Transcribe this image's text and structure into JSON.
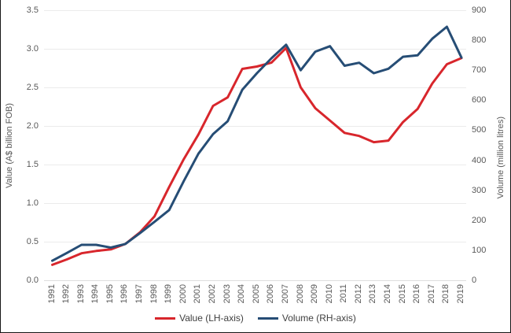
{
  "chart_data": {
    "type": "line",
    "title": "",
    "x": [
      1991,
      1992,
      1993,
      1994,
      1995,
      1996,
      1997,
      1998,
      1999,
      2000,
      2001,
      2002,
      2003,
      2004,
      2005,
      2006,
      2007,
      2008,
      2009,
      2010,
      2011,
      2012,
      2013,
      2014,
      2015,
      2016,
      2017,
      2018,
      2019
    ],
    "series": [
      {
        "name": "Value (LH-axis)",
        "axis": "left",
        "color": "#d8262c",
        "values": [
          0.2,
          0.27,
          0.35,
          0.38,
          0.4,
          0.47,
          0.62,
          0.83,
          1.21,
          1.57,
          1.89,
          2.26,
          2.37,
          2.74,
          2.77,
          2.82,
          3.01,
          2.5,
          2.23,
          2.07,
          1.91,
          1.87,
          1.79,
          1.81,
          2.05,
          2.22,
          2.55,
          2.8,
          2.88
        ]
      },
      {
        "name": "Volume (RH-axis)",
        "axis": "right",
        "color": "#264d75",
        "values": [
          65,
          91,
          118,
          118,
          109,
          121,
          157,
          195,
          234,
          331,
          422,
          487,
          530,
          635,
          690,
          740,
          785,
          700,
          762,
          780,
          715,
          725,
          690,
          705,
          745,
          750,
          805,
          845,
          742
        ]
      }
    ],
    "left_axis": {
      "label": "Value (A$ billion FOB)",
      "min": 0,
      "max": 3.5,
      "ticks": [
        "3.5",
        "3.0",
        "2.5",
        "2.0",
        "1.5",
        "1.0",
        "0.5",
        "0.0"
      ]
    },
    "right_axis": {
      "label": "Volume (million litres)",
      "min": 0,
      "max": 900,
      "ticks": [
        "900",
        "800",
        "700",
        "600",
        "500",
        "400",
        "300",
        "200",
        "100",
        "0"
      ]
    },
    "grid": true,
    "legend_position": "bottom"
  }
}
